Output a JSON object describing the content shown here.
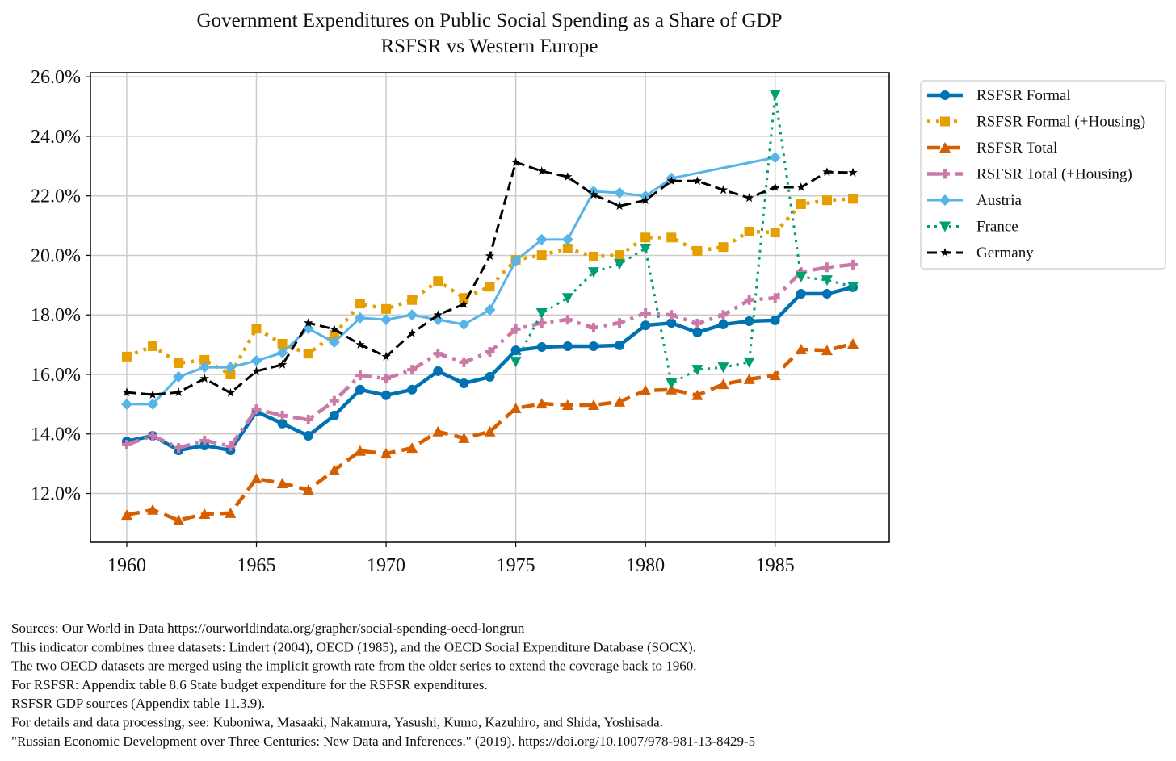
{
  "chart_data": {
    "type": "line",
    "title": "Government Expenditures on Public Social Spending as a Share of GDP",
    "subtitle": "RSFSR vs Western Europe",
    "xlabel": "",
    "ylabel": "",
    "xlim": [
      1958.6,
      1989.4
    ],
    "ylim": [
      10.36,
      26.14
    ],
    "grid": true,
    "legend_position": "outside-right-top",
    "x_ticks": [
      1960,
      1965,
      1970,
      1975,
      1980,
      1985
    ],
    "y_ticks": [
      12,
      14,
      16,
      18,
      20,
      22,
      24,
      26
    ],
    "y_tick_labels": [
      "12.0%",
      "14.0%",
      "16.0%",
      "18.0%",
      "20.0%",
      "22.0%",
      "24.0%",
      "26.0%"
    ],
    "x": [
      1960,
      1961,
      1962,
      1963,
      1964,
      1965,
      1966,
      1967,
      1968,
      1969,
      1970,
      1971,
      1972,
      1973,
      1974,
      1975,
      1976,
      1977,
      1978,
      1979,
      1980,
      1981,
      1982,
      1983,
      1984,
      1985,
      1986,
      1987,
      1988
    ],
    "series": [
      {
        "name": "RSFSR Formal",
        "color": "#0072B2",
        "style": "solid",
        "marker": "circle",
        "values": [
          13.75,
          13.94,
          13.45,
          13.61,
          13.45,
          14.75,
          14.35,
          13.94,
          14.62,
          15.49,
          15.3,
          15.49,
          16.11,
          15.7,
          15.92,
          16.81,
          16.92,
          16.95,
          16.95,
          16.98,
          17.65,
          17.73,
          17.41,
          17.68,
          17.79,
          17.82,
          18.71,
          18.71,
          18.93
        ]
      },
      {
        "name": "RSFSR Formal (+Housing)",
        "color": "#E69F00",
        "style": "dotted",
        "marker": "square",
        "values": [
          16.6,
          16.95,
          16.38,
          16.49,
          16.0,
          17.54,
          17.03,
          16.7,
          17.33,
          18.38,
          18.2,
          18.5,
          19.14,
          18.57,
          18.95,
          19.85,
          20.01,
          20.23,
          19.96,
          20.01,
          20.6,
          20.6,
          20.15,
          20.28,
          20.8,
          20.77,
          21.72,
          21.85,
          21.9
        ]
      },
      {
        "name": "RSFSR Total",
        "color": "#D55E00",
        "style": "dashed",
        "marker": "triangle-up",
        "values": [
          11.28,
          11.45,
          11.1,
          11.31,
          11.34,
          12.5,
          12.34,
          12.12,
          12.78,
          13.43,
          13.34,
          13.53,
          14.08,
          13.86,
          14.08,
          14.86,
          15.02,
          14.97,
          14.97,
          15.08,
          15.46,
          15.49,
          15.3,
          15.67,
          15.84,
          15.97,
          16.84,
          16.81,
          17.03
        ]
      },
      {
        "name": "RSFSR Total (+Housing)",
        "color": "#CC79A7",
        "style": "dashdot",
        "marker": "plus",
        "values": [
          13.64,
          13.94,
          13.53,
          13.78,
          13.59,
          14.83,
          14.62,
          14.48,
          15.11,
          15.97,
          15.86,
          16.16,
          16.7,
          16.41,
          16.76,
          17.52,
          17.73,
          17.84,
          17.57,
          17.73,
          18.06,
          18.0,
          17.71,
          18.0,
          18.5,
          18.57,
          19.44,
          19.6,
          19.69
        ]
      },
      {
        "name": "Austria",
        "color": "#56B4E9",
        "style": "solid-thin",
        "marker": "diamond",
        "values": [
          15.0,
          15.0,
          15.92,
          16.24,
          16.24,
          16.46,
          16.73,
          17.54,
          17.08,
          17.9,
          17.84,
          18.0,
          17.84,
          17.68,
          18.17,
          19.82,
          20.53,
          20.53,
          22.15,
          22.1,
          21.99,
          22.59,
          null,
          null,
          null,
          23.29,
          null,
          null,
          null
        ]
      },
      {
        "name": "France",
        "color": "#009E73",
        "style": "dotted-thin",
        "marker": "triangle-down",
        "values": [
          null,
          null,
          null,
          null,
          null,
          null,
          null,
          null,
          null,
          null,
          null,
          null,
          null,
          null,
          null,
          16.43,
          18.06,
          18.57,
          19.44,
          19.71,
          20.23,
          15.7,
          16.16,
          16.24,
          16.41,
          25.4,
          19.28,
          19.17,
          18.95
        ]
      },
      {
        "name": "Germany",
        "color": "#000000",
        "style": "dashed-thin",
        "marker": "star",
        "values": [
          15.4,
          15.32,
          15.4,
          15.86,
          15.38,
          16.11,
          16.33,
          17.73,
          17.52,
          17.0,
          16.6,
          17.38,
          18.0,
          18.36,
          19.98,
          23.13,
          22.83,
          22.64,
          22.04,
          21.66,
          21.85,
          22.5,
          22.5,
          22.2,
          21.93,
          22.29,
          22.29,
          22.8,
          22.78
        ]
      }
    ]
  },
  "footnotes": [
    "Sources: Our World in Data https://ourworldindata.org/grapher/social-spending-oecd-longrun",
    "This indicator combines three datasets: Lindert (2004), OECD (1985), and the OECD Social Expenditure Database (SOCX).",
    "The two OECD datasets are merged using the implicit growth rate from the older series to extend the coverage back to 1960.",
    "For RSFSR: Appendix table 8.6 State budget expenditure for the RSFSR expenditures.",
    "RSFSR GDP sources (Appendix table 11.3.9).",
    "For details and data processing, see: Kuboniwa, Masaaki, Nakamura, Yasushi, Kumo, Kazuhiro, and Shida, Yoshisada.",
    "\"Russian Economic Development over Three Centuries: New Data and Inferences.\" (2019). https://doi.org/10.1007/978-981-13-8429-5"
  ]
}
